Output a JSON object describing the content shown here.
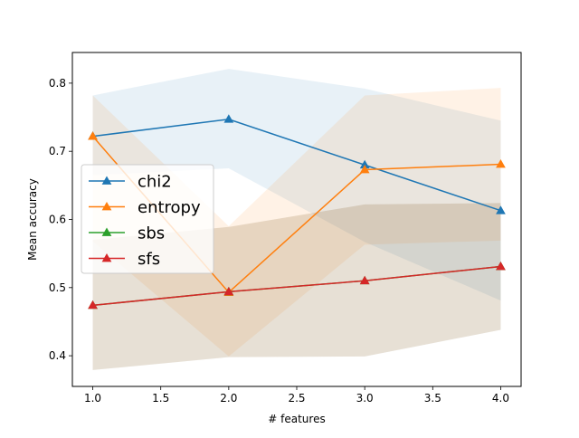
{
  "chart_data": {
    "type": "line",
    "title": "",
    "xlabel": "# features",
    "ylabel": "Mean accuracy",
    "xlim": [
      0.85,
      4.15
    ],
    "ylim": [
      0.355,
      0.845
    ],
    "x": [
      1.0,
      2.0,
      3.0,
      4.0
    ],
    "xticks": [
      1.0,
      1.5,
      2.0,
      2.5,
      3.0,
      3.5,
      4.0
    ],
    "xtick_labels": [
      "1.0",
      "1.5",
      "2.0",
      "2.5",
      "3.0",
      "3.5",
      "4.0"
    ],
    "yticks": [
      0.4,
      0.5,
      0.6,
      0.7,
      0.8
    ],
    "ytick_labels": [
      "0.4",
      "0.5",
      "0.6",
      "0.7",
      "0.8"
    ],
    "grid": false,
    "legend_position": "center-left",
    "marker": "triangle-up",
    "series": [
      {
        "name": "chi2",
        "color": "#1f77b4",
        "values": [
          0.722,
          0.747,
          0.68,
          0.613
        ],
        "lower": [
          0.665,
          0.675,
          0.567,
          0.481
        ],
        "upper": [
          0.782,
          0.821,
          0.792,
          0.745
        ]
      },
      {
        "name": "entropy",
        "color": "#ff7f0e",
        "values": [
          0.722,
          0.493,
          0.673,
          0.681
        ],
        "lower": [
          0.568,
          0.399,
          0.563,
          0.569
        ],
        "upper": [
          0.782,
          0.59,
          0.782,
          0.793
        ]
      },
      {
        "name": "sbs",
        "color": "#2ca02c",
        "values": [
          0.474,
          0.494,
          0.51,
          0.531
        ],
        "lower": [
          0.379,
          0.398,
          0.399,
          0.438
        ],
        "upper": [
          0.57,
          0.589,
          0.622,
          0.624
        ]
      },
      {
        "name": "sfs",
        "color": "#d62728",
        "values": [
          0.474,
          0.494,
          0.51,
          0.531
        ],
        "lower": [
          0.379,
          0.398,
          0.399,
          0.438
        ],
        "upper": [
          0.57,
          0.589,
          0.622,
          0.624
        ]
      }
    ]
  }
}
